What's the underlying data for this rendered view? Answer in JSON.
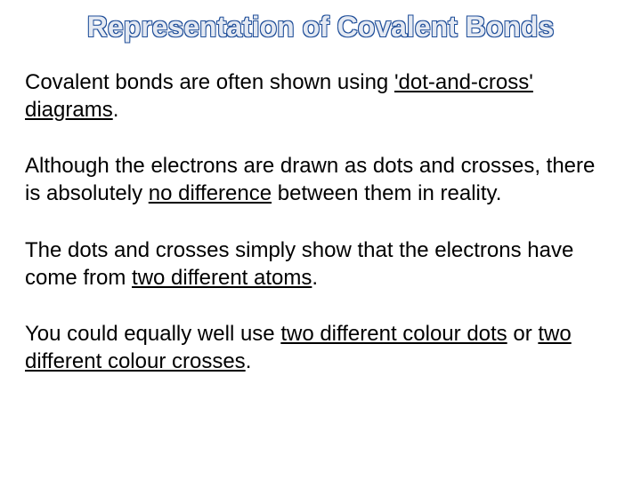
{
  "title": {
    "text": "Representation of Covalent Bonds",
    "fontsize": 32,
    "outline_color": "#1f4e99",
    "fill_color": "#e4e9f2"
  },
  "body": {
    "fontsize": 24,
    "color": "#000000"
  },
  "paragraphs": [
    {
      "runs": [
        {
          "t": "Covalent bonds are often shown using ",
          "u": false
        },
        {
          "t": "'dot-and-cross' diagrams",
          "u": true
        },
        {
          "t": ".",
          "u": false
        }
      ]
    },
    {
      "runs": [
        {
          "t": "Although the electrons are drawn as dots and crosses, there is absolutely ",
          "u": false
        },
        {
          "t": "no difference",
          "u": true
        },
        {
          "t": " between them in reality.",
          "u": false
        }
      ]
    },
    {
      "runs": [
        {
          "t": "The dots and crosses simply show that the electrons have come from ",
          "u": false
        },
        {
          "t": "two different atoms",
          "u": true
        },
        {
          "t": ".",
          "u": false
        }
      ]
    },
    {
      "runs": [
        {
          "t": "You could equally well use ",
          "u": false
        },
        {
          "t": "two different colour dots",
          "u": true
        },
        {
          "t": " or ",
          "u": false
        },
        {
          "t": "two different colour crosses",
          "u": true
        },
        {
          "t": ".",
          "u": false
        }
      ]
    }
  ]
}
